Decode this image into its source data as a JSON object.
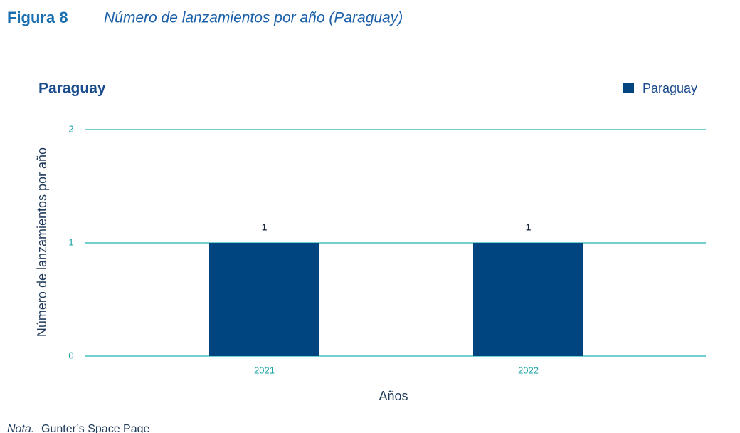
{
  "figure": {
    "label": "Figura 8",
    "title": "Número de lanzamientos por año (Paraguay)"
  },
  "chart_data": {
    "type": "bar",
    "title": "Paraguay",
    "x_label": "Años",
    "y_label": "Número de lanzamientos por año",
    "categories": [
      "2021",
      "2022"
    ],
    "series": [
      {
        "name": "Paraguay",
        "color": "#004480",
        "values": [
          1,
          1
        ]
      }
    ],
    "ylim": [
      0,
      2
    ],
    "yticks": [
      0,
      1,
      2
    ],
    "grid": true,
    "legend": "top-right"
  },
  "note": {
    "label": "Nota.",
    "text": "Gunter’s Space Page"
  }
}
